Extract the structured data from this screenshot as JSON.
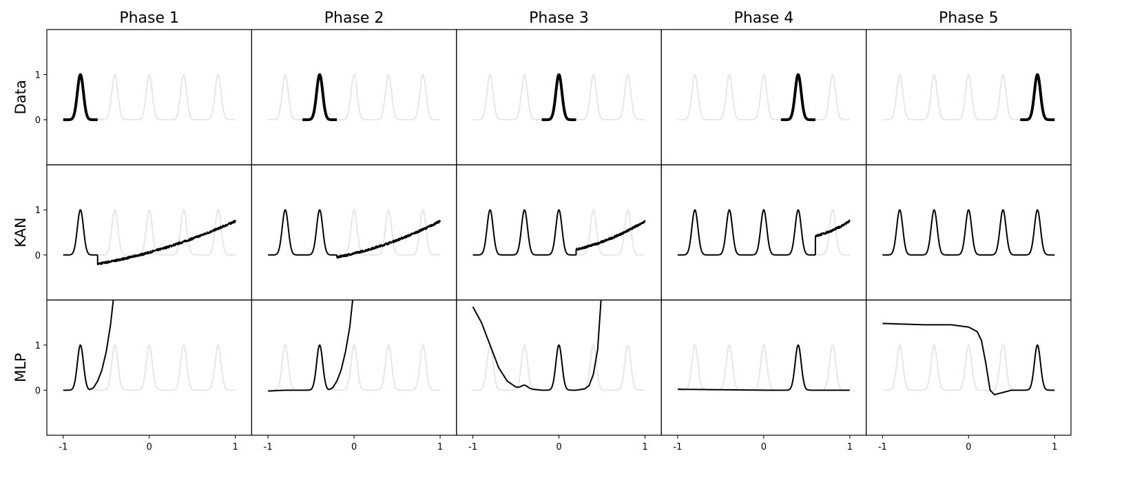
{
  "chart_data": {
    "type": "line",
    "titles": [
      "Phase 1",
      "Phase 2",
      "Phase 3",
      "Phase 4",
      "Phase 5"
    ],
    "row_labels": [
      "Data",
      "KAN",
      "MLP"
    ],
    "xlim": [
      -1.19,
      1.19
    ],
    "ylim": [
      -1,
      2
    ],
    "xticks": [
      {
        "v": -1,
        "label": "-1"
      },
      {
        "v": 0,
        "label": "0"
      },
      {
        "v": 1,
        "label": "1"
      }
    ],
    "yticks": [
      {
        "v": 0,
        "label": "0"
      },
      {
        "v": 1,
        "label": "1"
      }
    ],
    "peak_centers": [
      -0.8,
      -0.4,
      0,
      0.4,
      0.8
    ],
    "peak_width": 0.05,
    "colors": {
      "fit": "#000000",
      "background_peaks": "#e6e6e6",
      "axes": "#000000"
    },
    "data_row": [
      {
        "phase": 1,
        "x_range": [
          -1,
          -0.6
        ]
      },
      {
        "phase": 2,
        "x_range": [
          -0.6,
          -0.2
        ]
      },
      {
        "phase": 3,
        "x_range": [
          -0.2,
          0.2
        ]
      },
      {
        "phase": 4,
        "x_range": [
          0.2,
          0.6
        ]
      },
      {
        "phase": 5,
        "x_range": [
          0.6,
          1
        ]
      }
    ],
    "kan_row": [
      {
        "phase": 1,
        "peaks_learned": 1,
        "tail": {
          "start": -0.6,
          "y_start": -0.2,
          "y_end": 0.75
        }
      },
      {
        "phase": 2,
        "peaks_learned": 2,
        "tail": {
          "start": -0.2,
          "y_start": -0.05,
          "y_end": 0.75
        }
      },
      {
        "phase": 3,
        "peaks_learned": 3,
        "tail": {
          "start": 0.2,
          "y_start": 0.12,
          "y_end": 0.75
        }
      },
      {
        "phase": 4,
        "peaks_learned": 4,
        "tail": {
          "start": 0.6,
          "y_start": 0.42,
          "y_end": 0.75
        }
      },
      {
        "phase": 5,
        "peaks_learned": 5,
        "tail": null
      }
    ],
    "mlp_row": [
      {
        "phase": 1,
        "peaks": [
          -0.8
        ],
        "bumps": [],
        "baseline": [
          [
            -1,
            0
          ],
          [
            -0.7,
            0
          ],
          [
            -0.65,
            0.05
          ],
          [
            -0.6,
            0.2
          ],
          [
            -0.55,
            0.45
          ],
          [
            -0.5,
            0.85
          ],
          [
            -0.45,
            1.45
          ],
          [
            -0.4,
            2.3
          ],
          [
            1,
            2.3
          ]
        ]
      },
      {
        "phase": 2,
        "peaks": [
          -0.4
        ],
        "bumps": [],
        "baseline": [
          [
            -1,
            -0.02
          ],
          [
            -0.8,
            0
          ],
          [
            -0.3,
            0
          ],
          [
            -0.25,
            0.05
          ],
          [
            -0.2,
            0.2
          ],
          [
            -0.15,
            0.45
          ],
          [
            -0.1,
            0.85
          ],
          [
            -0.05,
            1.4
          ],
          [
            0,
            2.3
          ],
          [
            1,
            2.3
          ]
        ]
      },
      {
        "phase": 3,
        "peaks": [
          0
        ],
        "bumps": [
          [
            -0.4,
            0.07
          ]
        ],
        "baseline": [
          [
            -1,
            1.85
          ],
          [
            -0.9,
            1.5
          ],
          [
            -0.8,
            1.0
          ],
          [
            -0.7,
            0.5
          ],
          [
            -0.6,
            0.2
          ],
          [
            -0.5,
            0.07
          ],
          [
            -0.45,
            0.05
          ],
          [
            -0.35,
            0.03
          ],
          [
            -0.2,
            0
          ],
          [
            0.2,
            0
          ],
          [
            0.3,
            0.03
          ],
          [
            0.35,
            0.1
          ],
          [
            0.4,
            0.35
          ],
          [
            0.45,
            0.9
          ],
          [
            0.5,
            2.3
          ],
          [
            1,
            2.3
          ]
        ]
      },
      {
        "phase": 4,
        "peaks": [
          0.4
        ],
        "bumps": [],
        "baseline": [
          [
            -1,
            0.02
          ],
          [
            0,
            0
          ],
          [
            1,
            0
          ]
        ]
      },
      {
        "phase": 5,
        "peaks": [
          0.8
        ],
        "bumps": [],
        "baseline": [
          [
            -1,
            1.48
          ],
          [
            -0.5,
            1.45
          ],
          [
            -0.2,
            1.45
          ],
          [
            0,
            1.4
          ],
          [
            0.1,
            1.3
          ],
          [
            0.15,
            1.1
          ],
          [
            0.2,
            0.6
          ],
          [
            0.25,
            0
          ],
          [
            0.3,
            -0.1
          ],
          [
            0.4,
            -0.05
          ],
          [
            0.5,
            0
          ],
          [
            1,
            0
          ]
        ]
      }
    ]
  }
}
